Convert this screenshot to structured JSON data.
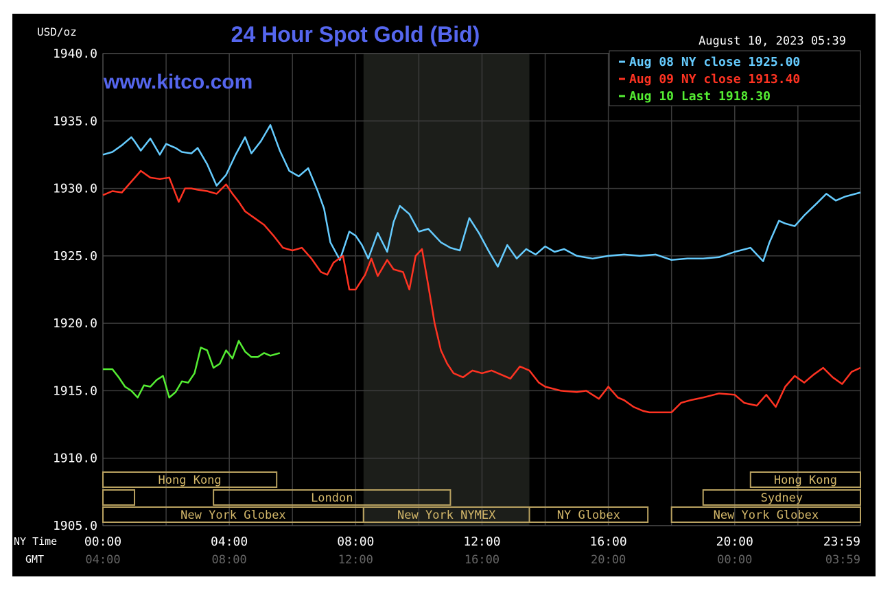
{
  "chart_data": {
    "type": "line",
    "title": "24 Hour Spot Gold (Bid)",
    "unit_label": "USD/oz",
    "watermark": "www.kitco.com",
    "timestamp": "August 10, 2023 05:39",
    "ylim": [
      1905,
      1940
    ],
    "y_ticks": [
      "1940.0",
      "1935.0",
      "1930.0",
      "1925.0",
      "1920.0",
      "1915.0",
      "1910.0",
      "1905.0"
    ],
    "xlim_hours": [
      0,
      23.98
    ],
    "x_ticks_ny": [
      "00:00",
      "04:00",
      "08:00",
      "12:00",
      "16:00",
      "20:00",
      "23:59"
    ],
    "x_ticks_gmt": [
      "04:00",
      "08:00",
      "12:00",
      "16:00",
      "20:00",
      "00:00",
      "03:59"
    ],
    "row_labels": {
      "ny": "NY Time",
      "gmt": "GMT"
    },
    "grid": true,
    "legend_position": "top-right",
    "highlight_hours": [
      8.25,
      13.5
    ],
    "series": [
      {
        "name": "Aug 08 NY close 1925.00",
        "color": "#66ccff",
        "x": [
          0,
          0.3,
          0.6,
          0.9,
          1.0,
          1.2,
          1.5,
          1.8,
          2.0,
          2.3,
          2.5,
          2.8,
          3.0,
          3.3,
          3.6,
          3.9,
          4.2,
          4.5,
          4.7,
          5.0,
          5.3,
          5.6,
          5.9,
          6.2,
          6.5,
          6.8,
          7.0,
          7.2,
          7.5,
          7.8,
          8.0,
          8.2,
          8.4,
          8.7,
          9.0,
          9.2,
          9.4,
          9.7,
          10.0,
          10.3,
          10.5,
          10.7,
          11.0,
          11.3,
          11.6,
          11.9,
          12.2,
          12.5,
          12.8,
          13.1,
          13.4,
          13.7,
          14.0,
          14.3,
          14.6,
          15.0,
          15.5,
          16.0,
          16.5,
          17.0,
          17.5,
          18.0,
          18.5,
          19.0,
          19.5,
          20.0,
          20.5,
          20.9,
          21.1,
          21.4,
          21.6,
          21.9,
          22.2,
          22.6,
          22.9,
          23.2,
          23.5,
          23.98
        ],
        "y": [
          1932.5,
          1932.7,
          1933.2,
          1933.8,
          1933.5,
          1932.8,
          1933.7,
          1932.5,
          1933.3,
          1933.0,
          1932.7,
          1932.6,
          1933.0,
          1931.8,
          1930.2,
          1931.0,
          1932.5,
          1933.8,
          1932.6,
          1933.5,
          1934.7,
          1932.8,
          1931.3,
          1930.9,
          1931.5,
          1929.8,
          1928.5,
          1926.0,
          1924.7,
          1926.8,
          1926.5,
          1925.8,
          1924.8,
          1926.7,
          1925.3,
          1927.5,
          1928.7,
          1928.1,
          1926.8,
          1927.0,
          1926.5,
          1926.0,
          1925.6,
          1925.4,
          1927.8,
          1926.7,
          1925.4,
          1924.2,
          1925.8,
          1924.8,
          1925.5,
          1925.1,
          1925.7,
          1925.3,
          1925.5,
          1925.0,
          1924.8,
          1925.0,
          1925.1,
          1925.0,
          1925.1,
          1924.7,
          1924.8,
          1924.8,
          1924.9,
          1925.3,
          1925.6,
          1924.6,
          1926.0,
          1927.6,
          1927.4,
          1927.2,
          1928.0,
          1928.9,
          1929.6,
          1929.1,
          1929.4,
          1929.7
        ]
      },
      {
        "name": "Aug 09 NY close 1913.40",
        "color": "#ff3322",
        "x": [
          0,
          0.3,
          0.6,
          0.9,
          1.2,
          1.5,
          1.8,
          2.1,
          2.4,
          2.6,
          2.8,
          3.0,
          3.3,
          3.6,
          3.9,
          4.1,
          4.3,
          4.5,
          4.8,
          5.1,
          5.4,
          5.7,
          6.0,
          6.3,
          6.6,
          6.9,
          7.1,
          7.3,
          7.6,
          7.8,
          8.0,
          8.3,
          8.5,
          8.7,
          9.0,
          9.2,
          9.5,
          9.7,
          9.9,
          10.1,
          10.3,
          10.5,
          10.7,
          10.9,
          11.1,
          11.4,
          11.7,
          12.0,
          12.3,
          12.6,
          12.9,
          13.2,
          13.5,
          13.8,
          14.0,
          14.5,
          15.0,
          15.3,
          15.7,
          16.0,
          16.3,
          16.5,
          16.8,
          17.1,
          17.3,
          17.6,
          18.0,
          18.3,
          18.6,
          19.0,
          19.5,
          20.0,
          20.3,
          20.7,
          21.0,
          21.3,
          21.6,
          21.9,
          22.2,
          22.5,
          22.8,
          23.1,
          23.4,
          23.7,
          23.98
        ],
        "y": [
          1929.5,
          1929.8,
          1929.7,
          1930.5,
          1931.3,
          1930.8,
          1930.7,
          1930.8,
          1929.0,
          1930.0,
          1930.0,
          1929.9,
          1929.8,
          1929.6,
          1930.3,
          1929.6,
          1929.0,
          1928.3,
          1927.8,
          1927.3,
          1926.5,
          1925.6,
          1925.4,
          1925.6,
          1924.8,
          1923.8,
          1923.6,
          1924.5,
          1925.0,
          1922.5,
          1922.5,
          1923.6,
          1924.8,
          1923.5,
          1924.7,
          1924.0,
          1923.8,
          1922.5,
          1925.0,
          1925.5,
          1922.8,
          1920.0,
          1918.0,
          1917.0,
          1916.3,
          1916.0,
          1916.5,
          1916.3,
          1916.5,
          1916.2,
          1915.9,
          1916.8,
          1916.5,
          1915.6,
          1915.3,
          1915.0,
          1914.9,
          1915.0,
          1914.4,
          1915.3,
          1914.5,
          1914.3,
          1913.8,
          1913.5,
          1913.4,
          1913.4,
          1913.4,
          1914.1,
          1914.3,
          1914.5,
          1914.8,
          1914.7,
          1914.1,
          1913.9,
          1914.7,
          1913.8,
          1915.3,
          1916.1,
          1915.6,
          1916.2,
          1916.7,
          1916.0,
          1915.5,
          1916.4,
          1916.7
        ]
      },
      {
        "name": "Aug 10 Last 1918.30",
        "color": "#55ee33",
        "x": [
          0,
          0.3,
          0.5,
          0.7,
          0.9,
          1.1,
          1.3,
          1.5,
          1.7,
          1.9,
          2.1,
          2.3,
          2.5,
          2.7,
          2.9,
          3.1,
          3.3,
          3.5,
          3.7,
          3.9,
          4.1,
          4.3,
          4.5,
          4.7,
          4.9,
          5.1,
          5.3,
          5.6
        ],
        "y": [
          1916.6,
          1916.6,
          1916.0,
          1915.3,
          1915.0,
          1914.5,
          1915.4,
          1915.3,
          1915.8,
          1916.1,
          1914.5,
          1914.9,
          1915.7,
          1915.6,
          1916.3,
          1918.2,
          1918.0,
          1916.7,
          1917.0,
          1918.0,
          1917.4,
          1918.7,
          1917.9,
          1917.5,
          1917.5,
          1917.8,
          1917.6,
          1917.8
        ]
      }
    ]
  },
  "sessions": [
    {
      "label": "Hong Kong",
      "row": 0,
      "start": 0,
      "end": 5.5
    },
    {
      "label": "Hong Kong",
      "row": 0,
      "start": 20.5,
      "end": 23.98
    },
    {
      "label": "",
      "row": 1,
      "start": 0,
      "end": 1.0
    },
    {
      "label": "London",
      "row": 1,
      "start": 3.5,
      "end": 11.0
    },
    {
      "label": "Sydney",
      "row": 1,
      "start": 19.0,
      "end": 23.98
    },
    {
      "label": "New York Globex",
      "row": 2,
      "start": 0,
      "end": 8.25
    },
    {
      "label": "New York NYMEX",
      "row": 2,
      "start": 8.25,
      "end": 13.5
    },
    {
      "label": "NY Globex",
      "row": 2,
      "start": 13.5,
      "end": 17.25
    },
    {
      "label": "New York Globex",
      "row": 2,
      "start": 18.0,
      "end": 23.98
    }
  ]
}
